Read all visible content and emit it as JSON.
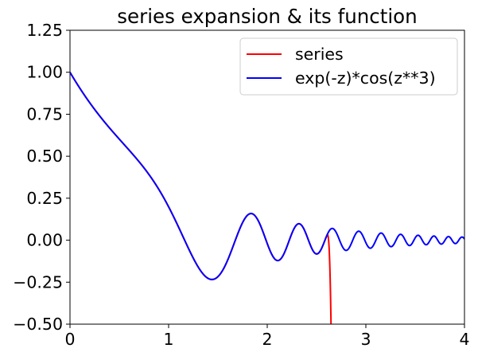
{
  "chart_data": {
    "type": "line",
    "title": "series expansion & its function",
    "xlabel": "",
    "ylabel": "",
    "xlim": [
      0,
      4
    ],
    "ylim": [
      -0.5,
      1.25
    ],
    "x_ticks": [
      "0",
      "1",
      "2",
      "3",
      "4"
    ],
    "y_ticks": [
      "−0.50",
      "−0.25",
      "0.00",
      "0.25",
      "0.50",
      "0.75",
      "1.00",
      "1.25"
    ],
    "grid": false,
    "legend_position": "upper right",
    "series": [
      {
        "name": "series",
        "color": "#ff0000",
        "function": "Taylor series of exp(-z)*cos(z**3)",
        "x_range": [
          0,
          2.66
        ]
      },
      {
        "name": "exp(-z)*cos(z**3)",
        "color": "#0000ff",
        "function": "exp(-z)*cos(z**3)",
        "x_range": [
          0,
          4
        ]
      }
    ]
  }
}
